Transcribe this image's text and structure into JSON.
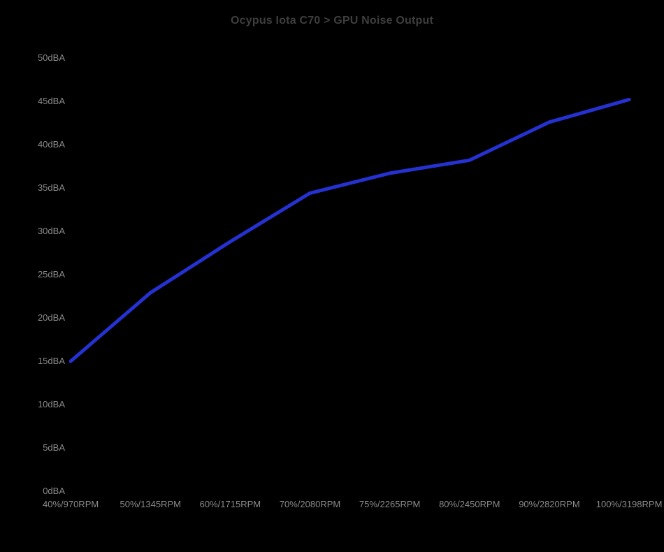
{
  "chart_data": {
    "type": "line",
    "title": "Ocypus Iota C70 > GPU Noise Output",
    "categories": [
      "40%/970RPM",
      "50%/1345RPM",
      "60%/1715RPM",
      "70%/2080RPM",
      "75%/2265RPM",
      "80%/2450RPM",
      "90%/2820RPM",
      "100%/3198RPM"
    ],
    "series": [
      {
        "name": "GPU Noise Output",
        "values": [
          15.0,
          22.9,
          28.8,
          34.4,
          36.7,
          38.2,
          42.6,
          45.2
        ]
      }
    ],
    "ytick_labels": [
      "0dBA",
      "5dBA",
      "10dBA",
      "15dBA",
      "20dBA",
      "25dBA",
      "30dBA",
      "35dBA",
      "40dBA",
      "45dBA",
      "50dBA"
    ],
    "ytick_values": [
      0,
      5,
      10,
      15,
      20,
      25,
      30,
      35,
      40,
      45,
      50
    ],
    "xlabel": "",
    "ylabel": "",
    "ylim": [
      0,
      50
    ],
    "grid": false,
    "legend": "none",
    "colors": {
      "background": "#000000",
      "line": "#2531d1",
      "title_text": "#3e3e3e",
      "tick_text": "#8a8a8a"
    }
  }
}
